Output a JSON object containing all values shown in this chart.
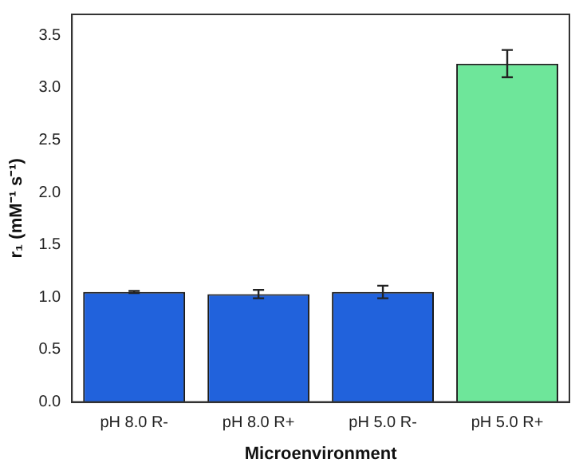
{
  "chart_data": {
    "type": "bar",
    "xlabel": "Microenvironment",
    "ylabel": "r₁ (mM⁻¹ s⁻¹)",
    "categories": [
      "pH 8.0 R-",
      "pH 8.0 R+",
      "pH 5.0 R-",
      "pH 5.0 R+"
    ],
    "values": [
      1.05,
      1.03,
      1.05,
      3.23
    ],
    "errors": [
      0.01,
      0.04,
      0.06,
      0.13
    ],
    "colors": [
      "#2162dc",
      "#2162dc",
      "#2162dc",
      "#6ee69a"
    ],
    "ylim": [
      0,
      3.7
    ],
    "yticks": [
      {
        "value": 0,
        "label": "0.0"
      },
      {
        "value": 0.5,
        "label": "0.5"
      },
      {
        "value": 1,
        "label": "1.0"
      },
      {
        "value": 1.5,
        "label": "1.5"
      },
      {
        "value": 2,
        "label": "2.0"
      },
      {
        "value": 2.5,
        "label": "2.5"
      },
      {
        "value": 3,
        "label": "3.0"
      },
      {
        "value": 3.5,
        "label": "3.5"
      }
    ],
    "grid": false,
    "legend": false
  }
}
